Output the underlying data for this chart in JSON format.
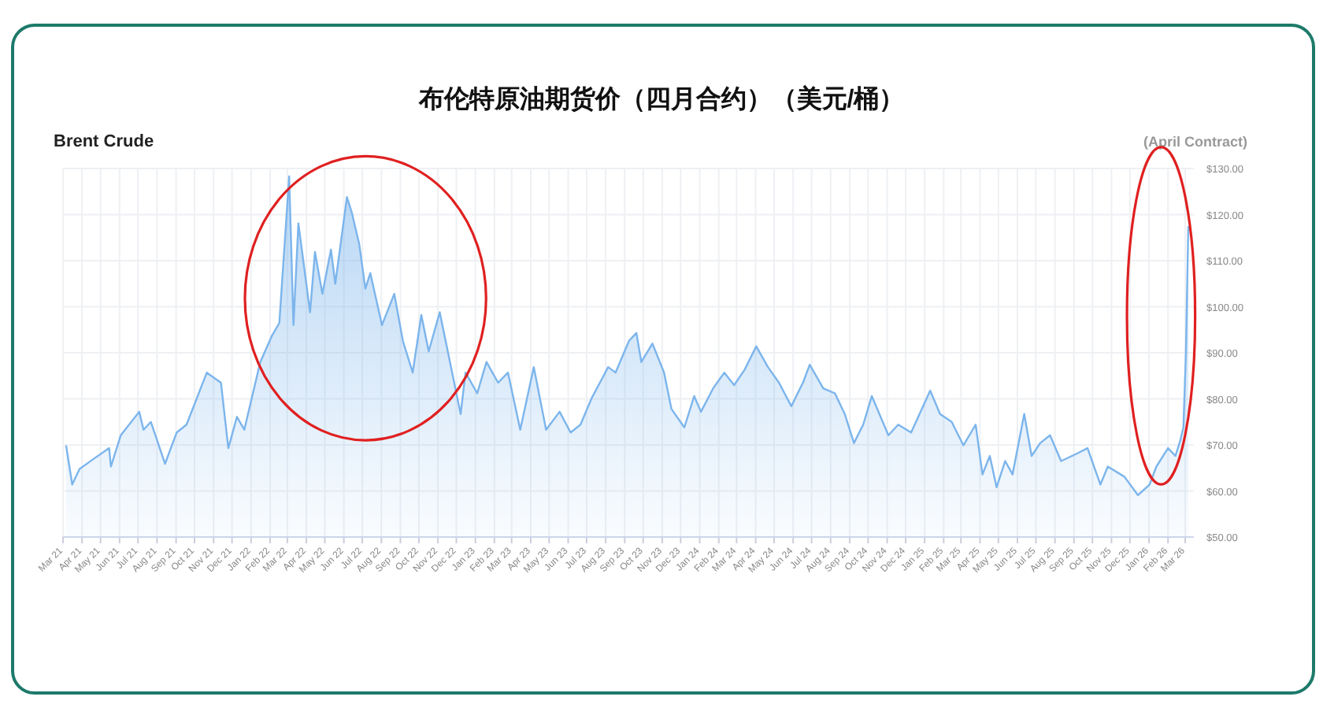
{
  "chart_data": {
    "type": "area",
    "title": "布伦特原油期货价（四月合约）（美元/桶）",
    "subtitle": "Brent Crude",
    "annotations": [
      "(April Contract)"
    ],
    "series": [
      {
        "color": "#7cb5ec",
        "x": [
          "2021-03-06",
          "2021-03-16",
          "2021-03-28",
          "2021-04-16",
          "2021-05-15",
          "2021-05-18",
          "2021-06-03",
          "2021-07-03",
          "2021-07-10",
          "2021-07-22",
          "2021-08-14",
          "2021-09-02",
          "2021-09-18",
          "2021-10-21",
          "2021-11-13",
          "2021-11-25",
          "2021-12-09",
          "2021-12-21",
          "2022-01-16",
          "2022-02-04",
          "2022-02-16",
          "2022-03-04",
          "2022-03-11",
          "2022-03-19",
          "2022-04-07",
          "2022-04-15",
          "2022-04-27",
          "2022-05-11",
          "2022-05-18",
          "2022-06-06",
          "2022-06-14",
          "2022-06-26",
          "2022-07-06",
          "2022-07-14",
          "2022-08-02",
          "2022-08-22",
          "2022-09-05",
          "2022-09-21",
          "2022-10-05",
          "2022-10-17",
          "2022-11-04",
          "2022-12-08",
          "2022-12-16",
          "2023-01-04",
          "2023-01-19",
          "2023-02-07",
          "2023-02-23",
          "2023-03-15",
          "2023-04-06",
          "2023-04-26",
          "2023-05-18",
          "2023-06-05",
          "2023-06-21",
          "2023-07-09",
          "2023-08-05",
          "2023-08-17",
          "2023-09-08",
          "2023-09-20",
          "2023-09-28",
          "2023-10-16",
          "2023-11-04",
          "2023-11-16",
          "2023-12-07",
          "2023-12-23",
          "2024-01-03",
          "2024-01-23",
          "2024-02-10",
          "2024-02-26",
          "2024-03-14",
          "2024-04-02",
          "2024-04-21",
          "2024-05-09",
          "2024-05-29",
          "2024-06-17",
          "2024-06-28",
          "2024-07-20",
          "2024-08-08",
          "2024-08-24",
          "2024-09-08",
          "2024-09-23",
          "2024-10-07",
          "2024-11-03",
          "2024-11-19",
          "2024-12-10",
          "2025-01-10",
          "2025-01-26",
          "2025-02-14",
          "2025-03-05",
          "2025-03-25",
          "2025-04-05",
          "2025-04-17",
          "2025-04-28",
          "2025-05-12",
          "2025-05-24",
          "2025-06-12",
          "2025-06-24",
          "2025-07-08",
          "2025-07-24",
          "2025-08-11",
          "2025-09-07",
          "2025-09-23",
          "2025-10-14",
          "2025-10-26",
          "2025-11-22",
          "2025-12-14",
          "2026-01-02",
          "2026-01-13",
          "2026-02-01",
          "2026-02-13",
          "2026-02-21",
          "2026-02-26",
          "2026-03-02",
          "2026-03-06"
        ],
        "values": [
          69.9,
          61.4,
          64.8,
          66.6,
          69.3,
          65.3,
          72.1,
          77.2,
          73.3,
          75,
          65.9,
          72.7,
          74.4,
          85.7,
          83.5,
          69.3,
          76.1,
          73.3,
          88,
          93.7,
          96.5,
          128.3,
          96,
          118.1,
          98.8,
          111.9,
          102.8,
          112.4,
          105,
          123.8,
          120.4,
          113.6,
          103.9,
          107.3,
          96,
          102.8,
          92.6,
          85.7,
          98.2,
          90.3,
          98.8,
          76.7,
          85.7,
          81.2,
          88,
          83.5,
          85.7,
          73.3,
          86.9,
          73.3,
          77.2,
          72.7,
          74.4,
          80.1,
          86.9,
          85.7,
          92.6,
          94.3,
          88,
          92,
          85.7,
          77.8,
          73.8,
          80.6,
          77.2,
          82.3,
          85.7,
          83,
          86.3,
          91.4,
          86.9,
          83.5,
          78.4,
          83.5,
          87.4,
          82.3,
          81.2,
          76.7,
          70.4,
          74.4,
          80.6,
          72.1,
          74.4,
          72.7,
          81.8,
          76.7,
          75,
          69.9,
          74.4,
          63.6,
          67.6,
          60.8,
          66.5,
          63.6,
          76.7,
          67.6,
          70.4,
          72.1,
          66.5,
          68.2,
          69.3,
          61.4,
          65.3,
          63.1,
          59.1,
          61.4,
          65.3,
          69.3,
          67.6,
          71,
          73.8,
          89.7,
          117.5
        ]
      }
    ],
    "xlim": [
      "2021-03-01",
      "2026-03-15"
    ],
    "xticks": [
      {
        "value": "2021-03",
        "label": "Mar 21"
      },
      {
        "value": "2021-04",
        "label": "Apr 21"
      },
      {
        "value": "2021-05",
        "label": "May 21"
      },
      {
        "value": "2021-06",
        "label": "Jun 21"
      },
      {
        "value": "2021-07",
        "label": "Jul 21"
      },
      {
        "value": "2021-08",
        "label": "Aug 21"
      },
      {
        "value": "2021-09",
        "label": "Sep 21"
      },
      {
        "value": "2021-10",
        "label": "Oct 21"
      },
      {
        "value": "2021-11",
        "label": "Nov 21"
      },
      {
        "value": "2021-12",
        "label": "Dec 21"
      },
      {
        "value": "2022-01",
        "label": "Jan 22"
      },
      {
        "value": "2022-02",
        "label": "Feb 22"
      },
      {
        "value": "2022-03",
        "label": "Mar 22"
      },
      {
        "value": "2022-04",
        "label": "Apr 22"
      },
      {
        "value": "2022-05",
        "label": "May 22"
      },
      {
        "value": "2022-06",
        "label": "Jun 22"
      },
      {
        "value": "2022-07",
        "label": "Jul 22"
      },
      {
        "value": "2022-08",
        "label": "Aug 22"
      },
      {
        "value": "2022-09",
        "label": "Sep 22"
      },
      {
        "value": "2022-10",
        "label": "Oct 22"
      },
      {
        "value": "2022-11",
        "label": "Nov 22"
      },
      {
        "value": "2022-12",
        "label": "Dec 22"
      },
      {
        "value": "2023-01",
        "label": "Jan 23"
      },
      {
        "value": "2023-02",
        "label": "Feb 23"
      },
      {
        "value": "2023-03",
        "label": "Mar 23"
      },
      {
        "value": "2023-04",
        "label": "Apr 23"
      },
      {
        "value": "2023-05",
        "label": "May 23"
      },
      {
        "value": "2023-06",
        "label": "Jun 23"
      },
      {
        "value": "2023-07",
        "label": "Jul 23"
      },
      {
        "value": "2023-08",
        "label": "Aug 23"
      },
      {
        "value": "2023-09",
        "label": "Sep 23"
      },
      {
        "value": "2023-10",
        "label": "Oct 23"
      },
      {
        "value": "2023-11",
        "label": "Nov 23"
      },
      {
        "value": "2023-12",
        "label": "Dec 23"
      },
      {
        "value": "2024-01",
        "label": "Jan 24"
      },
      {
        "value": "2024-02",
        "label": "Feb 24"
      },
      {
        "value": "2024-03",
        "label": "Mar 24"
      },
      {
        "value": "2024-04",
        "label": "Apr 24"
      },
      {
        "value": "2024-05",
        "label": "May 24"
      },
      {
        "value": "2024-06",
        "label": "Jun 24"
      },
      {
        "value": "2024-07",
        "label": "Jul 24"
      },
      {
        "value": "2024-08",
        "label": "Aug 24"
      },
      {
        "value": "2024-09",
        "label": "Sep 24"
      },
      {
        "value": "2024-10",
        "label": "Oct 24"
      },
      {
        "value": "2024-11",
        "label": "Nov 24"
      },
      {
        "value": "2024-12",
        "label": "Dec 24"
      },
      {
        "value": "2025-01",
        "label": "Jan 25"
      },
      {
        "value": "2025-02",
        "label": "Feb 25"
      },
      {
        "value": "2025-03",
        "label": "Mar 25"
      },
      {
        "value": "2025-04",
        "label": "Apr 25"
      },
      {
        "value": "2025-05",
        "label": "May 25"
      },
      {
        "value": "2025-06",
        "label": "Jun 25"
      },
      {
        "value": "2025-07",
        "label": "Jul 25"
      },
      {
        "value": "2025-08",
        "label": "Aug 25"
      },
      {
        "value": "2025-09",
        "label": "Sep 25"
      },
      {
        "value": "2025-10",
        "label": "Oct 25"
      },
      {
        "value": "2025-11",
        "label": "Nov 25"
      },
      {
        "value": "2025-12",
        "label": "Dec 25"
      },
      {
        "value": "2026-01",
        "label": "Jan 26"
      },
      {
        "value": "2026-02",
        "label": "Feb 26"
      },
      {
        "value": "2026-03",
        "label": "Mar 26"
      }
    ],
    "ylim": [
      50,
      130
    ],
    "yticks": [
      {
        "value": 50,
        "label": "$50.00"
      },
      {
        "value": 60,
        "label": "$60.00"
      },
      {
        "value": 70,
        "label": "$70.00"
      },
      {
        "value": 80,
        "label": "$80.00"
      },
      {
        "value": 90,
        "label": "$90.00"
      },
      {
        "value": 100,
        "label": "$100.00"
      },
      {
        "value": 110,
        "label": "$110.00"
      },
      {
        "value": 120,
        "label": "$120.00"
      },
      {
        "value": 130,
        "label": "$130.00"
      }
    ],
    "grid": true
  }
}
